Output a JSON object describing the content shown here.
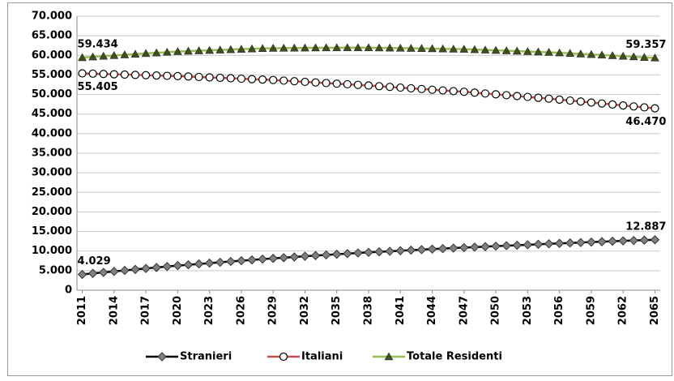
{
  "chart_data": {
    "type": "line",
    "x": [
      2011,
      2012,
      2013,
      2014,
      2015,
      2016,
      2017,
      2018,
      2019,
      2020,
      2021,
      2022,
      2023,
      2024,
      2025,
      2026,
      2027,
      2028,
      2029,
      2030,
      2031,
      2032,
      2033,
      2034,
      2035,
      2036,
      2037,
      2038,
      2039,
      2040,
      2041,
      2042,
      2043,
      2044,
      2045,
      2046,
      2047,
      2048,
      2049,
      2050,
      2051,
      2052,
      2053,
      2054,
      2055,
      2056,
      2057,
      2058,
      2059,
      2060,
      2061,
      2062,
      2063,
      2064,
      2065
    ],
    "xlim": [
      2010.5,
      2065.5
    ],
    "xticks": [
      2011,
      2014,
      2017,
      2020,
      2023,
      2026,
      2029,
      2032,
      2035,
      2038,
      2041,
      2044,
      2047,
      2050,
      2053,
      2056,
      2059,
      2062,
      2065
    ],
    "ylim": [
      0,
      70000
    ],
    "yticks": [
      0,
      {
        "value": 5000,
        "label": "5.000"
      },
      {
        "value": 10000,
        "label": "10.000"
      },
      {
        "value": 15000,
        "label": "15.000"
      },
      {
        "value": 20000,
        "label": "20.000"
      },
      {
        "value": 25000,
        "label": "25.000"
      },
      {
        "value": 30000,
        "label": "30.000"
      },
      {
        "value": 35000,
        "label": "35.000"
      },
      {
        "value": 40000,
        "label": "40.000"
      },
      {
        "value": 45000,
        "label": "45.000"
      },
      {
        "value": 50000,
        "label": "50.000"
      },
      {
        "value": 55000,
        "label": "55.000"
      },
      {
        "value": 60000,
        "label": "60.000"
      },
      {
        "value": 65000,
        "label": "65.000"
      },
      {
        "value": 70000,
        "label": "70.000"
      }
    ],
    "grid": true,
    "legend": "bottom",
    "series": [
      {
        "name": "Stranieri",
        "color": "#000000",
        "marker": "diamond",
        "marker_color": "#808080",
        "label_position": "above",
        "values": [
          4029,
          4290,
          4550,
          4800,
          5060,
          5310,
          5560,
          5800,
          6050,
          6290,
          6500,
          6710,
          6920,
          7130,
          7340,
          7540,
          7740,
          7940,
          8130,
          8310,
          8490,
          8670,
          8850,
          9020,
          9190,
          9350,
          9510,
          9670,
          9810,
          9950,
          10090,
          10230,
          10370,
          10500,
          10630,
          10760,
          10890,
          11010,
          11130,
          11250,
          11370,
          11490,
          11610,
          11730,
          11850,
          11960,
          12070,
          12180,
          12290,
          12400,
          12500,
          12600,
          12700,
          12790,
          12887
        ],
        "value_labels": [
          "4.029",
          null,
          null,
          null,
          null,
          null,
          null,
          null,
          null,
          null,
          null,
          null,
          null,
          null,
          null,
          null,
          null,
          null,
          null,
          null,
          null,
          null,
          null,
          null,
          null,
          null,
          null,
          null,
          null,
          null,
          null,
          null,
          null,
          null,
          null,
          null,
          null,
          null,
          null,
          null,
          null,
          null,
          null,
          null,
          null,
          null,
          null,
          null,
          null,
          null,
          null,
          null,
          null,
          null,
          "12.887"
        ]
      },
      {
        "name": "Italiani",
        "color": "#c0504d",
        "marker": "circle",
        "marker_color": "#ffffff",
        "label_position": "below",
        "values": [
          55405,
          55330,
          55250,
          55170,
          55090,
          55010,
          54930,
          54850,
          54770,
          54700,
          54590,
          54480,
          54370,
          54260,
          54150,
          54040,
          53930,
          53820,
          53700,
          53545,
          53390,
          53235,
          53080,
          52925,
          52770,
          52615,
          52460,
          52300,
          52120,
          51940,
          51760,
          51580,
          51400,
          51220,
          51040,
          50860,
          50700,
          50480,
          50260,
          50040,
          49820,
          49600,
          49380,
          49160,
          48940,
          48700,
          48450,
          48200,
          47950,
          47700,
          47450,
          47200,
          46950,
          46710,
          46470
        ],
        "value_labels": [
          "55.405",
          null,
          null,
          null,
          null,
          null,
          null,
          null,
          null,
          null,
          null,
          null,
          null,
          null,
          null,
          null,
          null,
          null,
          null,
          null,
          null,
          null,
          null,
          null,
          null,
          null,
          null,
          null,
          null,
          null,
          null,
          null,
          null,
          null,
          null,
          null,
          null,
          null,
          null,
          null,
          null,
          null,
          null,
          null,
          null,
          null,
          null,
          null,
          null,
          null,
          null,
          null,
          null,
          null,
          "46.470"
        ]
      },
      {
        "name": "Totale Residenti",
        "color": "#9bbb59",
        "marker": "triangle",
        "marker_color": "#3f4d1f",
        "label_position": "above",
        "values": [
          59434,
          59620,
          59800,
          59970,
          60150,
          60320,
          60490,
          60650,
          60820,
          60990,
          61090,
          61190,
          61290,
          61390,
          61490,
          61580,
          61670,
          61760,
          61830,
          61855,
          61880,
          61905,
          61930,
          61945,
          61960,
          61965,
          61970,
          61970,
          61930,
          61890,
          61850,
          61810,
          61770,
          61720,
          61670,
          61620,
          61590,
          61490,
          61390,
          61290,
          61190,
          61090,
          60990,
          60890,
          60790,
          60660,
          60520,
          60380,
          60240,
          60100,
          59950,
          59800,
          59650,
          59500,
          59357
        ],
        "value_labels": [
          "59.434",
          null,
          null,
          null,
          null,
          null,
          null,
          null,
          null,
          null,
          null,
          null,
          null,
          null,
          null,
          null,
          null,
          null,
          null,
          null,
          null,
          null,
          null,
          null,
          null,
          null,
          null,
          null,
          null,
          null,
          null,
          null,
          null,
          null,
          null,
          null,
          null,
          null,
          null,
          null,
          null,
          null,
          null,
          null,
          null,
          null,
          null,
          null,
          null,
          null,
          null,
          null,
          null,
          null,
          "59.357"
        ]
      }
    ]
  }
}
